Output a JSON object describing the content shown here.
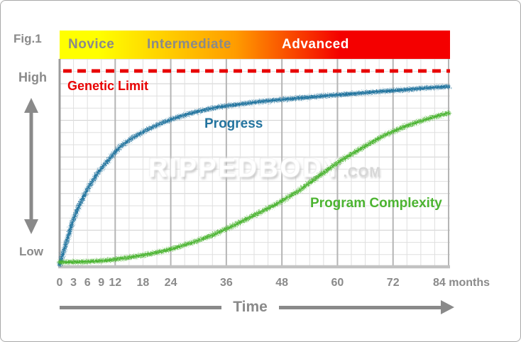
{
  "figure": {
    "label": "Fig.1"
  },
  "watermark": {
    "text": "RIPPEDBODY",
    "suffix": ".COM"
  },
  "banner": {
    "gradient_colors": [
      "#ffff00",
      "#ff9c00",
      "#f40000"
    ],
    "stages": [
      {
        "label": "Novice",
        "text_color": "#8a8a8a"
      },
      {
        "label": "Intermediate",
        "text_color": "#8a8a8a"
      },
      {
        "label": "Advanced",
        "text_color": "#ffffff"
      }
    ]
  },
  "colors": {
    "axis_text": "#8a8a8a",
    "grid_minor": "#dfdfdf",
    "grid_major": "#b5b5b5",
    "axis_line": "#9c9c9c",
    "baseline": "#c2c2c2"
  },
  "chart_data": {
    "type": "line",
    "title": "",
    "x_axis": {
      "label": "Time",
      "unit": "months",
      "range_months": [
        0,
        84
      ]
    },
    "y_axis": {
      "low_label": "Low",
      "high_label": "High",
      "scale": [
        0,
        100
      ]
    },
    "x_ticks": [
      {
        "m": 0,
        "label": "0"
      },
      {
        "m": 3,
        "label": "3"
      },
      {
        "m": 6,
        "label": "6"
      },
      {
        "m": 9,
        "label": "9"
      },
      {
        "m": 12,
        "label": "12"
      },
      {
        "m": 18,
        "label": "18"
      },
      {
        "m": 24,
        "label": "24"
      },
      {
        "m": 36,
        "label": "36"
      },
      {
        "m": 48,
        "label": "48"
      },
      {
        "m": 60,
        "label": "60"
      },
      {
        "m": 72,
        "label": "72"
      },
      {
        "m": 84,
        "label": "84 months"
      }
    ],
    "reference_line": {
      "label": "Genetic Limit",
      "value": 100,
      "style": "dashed",
      "color": "#e80000"
    },
    "series": [
      {
        "name": "Progress",
        "color": "#24749f",
        "months": [
          0,
          1.4,
          2.6,
          4.1,
          6,
          8.1,
          10.6,
          13,
          15.8,
          18.8,
          22.2,
          25.9,
          29.9,
          34.2,
          38.8,
          43.7,
          48.6,
          53.8,
          59,
          63.9,
          69.1,
          74,
          79.2,
          84
        ],
        "values": [
          0.7,
          11.6,
          21.5,
          30.5,
          39.3,
          47.3,
          54.5,
          61.1,
          65.8,
          69.8,
          73.5,
          76.7,
          79.3,
          81.5,
          82.9,
          84.4,
          85.5,
          86.5,
          87.6,
          88.4,
          89.5,
          90.2,
          91.3,
          92
        ]
      },
      {
        "name": "Program Complexity",
        "color": "#4cb431",
        "months": [
          0,
          5.7,
          10.3,
          14.9,
          19.5,
          24.1,
          28.6,
          33.2,
          37.8,
          42.4,
          47,
          51.6,
          56.2,
          60.8,
          65.4,
          70,
          74.6,
          79.2,
          84
        ],
        "values": [
          2,
          2.2,
          2.9,
          4.4,
          6.2,
          8.7,
          12,
          16,
          21.1,
          26.5,
          32,
          38.5,
          46.5,
          54.2,
          60.7,
          66.9,
          71.6,
          75.3,
          78.5
        ]
      }
    ],
    "stage_bands": [
      "Novice",
      "Intermediate",
      "Advanced"
    ],
    "legend_position": "on-curve-labels",
    "grid": true
  }
}
